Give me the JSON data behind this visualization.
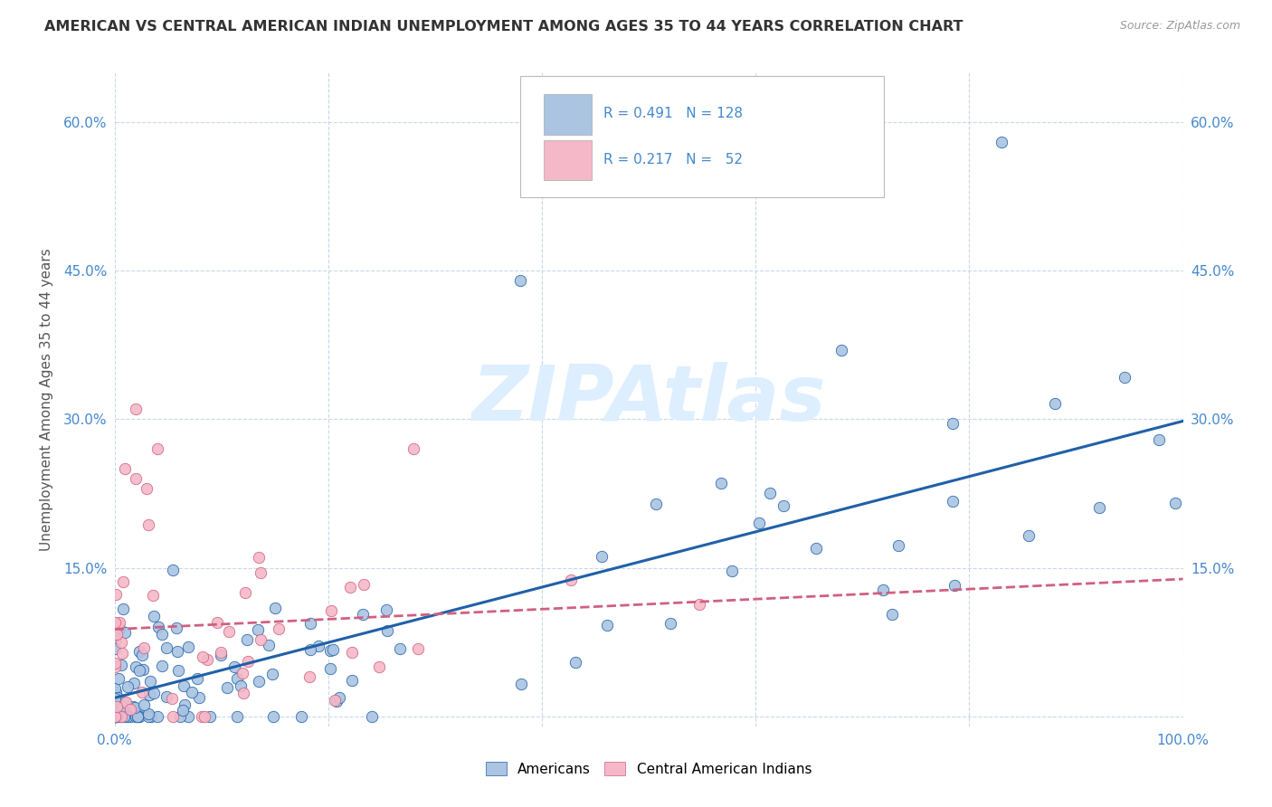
{
  "title": "AMERICAN VS CENTRAL AMERICAN INDIAN UNEMPLOYMENT AMONG AGES 35 TO 44 YEARS CORRELATION CHART",
  "source": "Source: ZipAtlas.com",
  "ylabel": "Unemployment Among Ages 35 to 44 years",
  "xlim": [
    0,
    1.0
  ],
  "ylim": [
    -0.01,
    0.65
  ],
  "blue_R": 0.491,
  "blue_N": 128,
  "pink_R": 0.217,
  "pink_N": 52,
  "blue_color": "#aac4e2",
  "pink_color": "#f5b8c8",
  "blue_line_color": "#2060a8",
  "pink_line_color": "#d06080",
  "background_color": "#ffffff",
  "grid_color": "#c8d8ea",
  "tick_color": "#4488cc",
  "title_color": "#333333",
  "watermark_color": "#ddeeff"
}
